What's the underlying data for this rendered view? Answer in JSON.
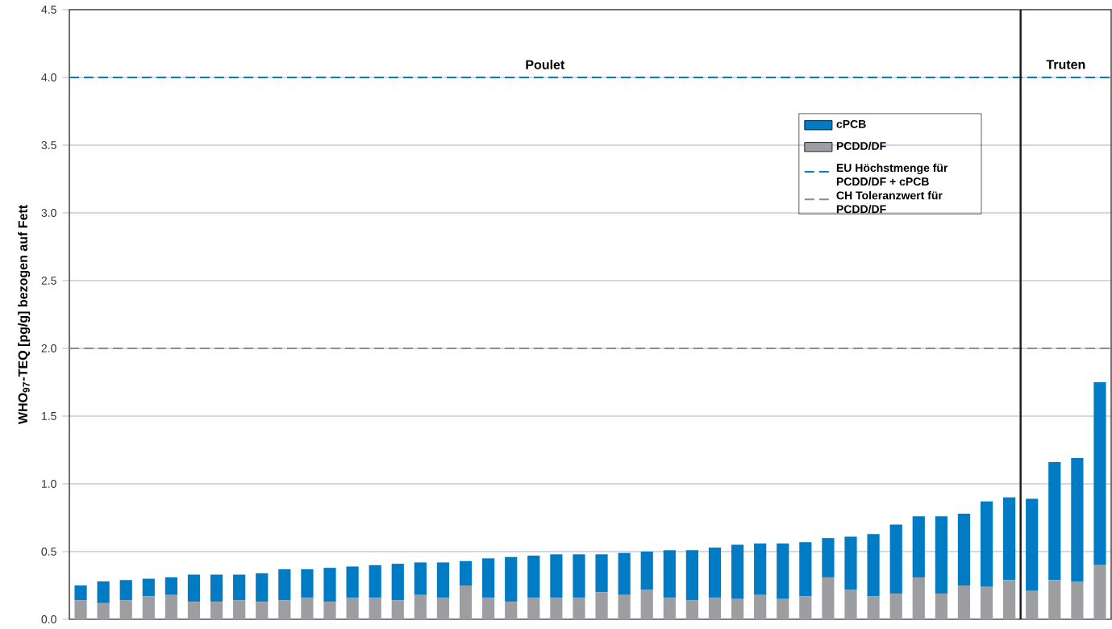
{
  "chart_data": {
    "type": "bar",
    "stacked": true,
    "ylabel": "WHO$_{97}$-TEQ [pg/g] bezogen auf Fett",
    "annotations": [
      "Poulet",
      "Truten"
    ],
    "categories": [
      null,
      null,
      null,
      null,
      null,
      null,
      null,
      null,
      null,
      null,
      null,
      null,
      null,
      null,
      null,
      null,
      null,
      null,
      null,
      null,
      null,
      null,
      null,
      null,
      null,
      null,
      null,
      null,
      null,
      null,
      null,
      null,
      null,
      null,
      null,
      null,
      null,
      null,
      null,
      null,
      null,
      null,
      null,
      null,
      null,
      null
    ],
    "series": [
      {
        "name": "PCDD/DF",
        "color": "#9d9ea2",
        "values": [
          0.14,
          0.12,
          0.14,
          0.17,
          0.18,
          0.13,
          0.13,
          0.14,
          0.13,
          0.14,
          0.16,
          0.13,
          0.16,
          0.16,
          0.14,
          0.18,
          0.16,
          0.25,
          0.16,
          0.13,
          0.16,
          0.16,
          0.16,
          0.2,
          0.18,
          0.22,
          0.16,
          0.14,
          0.16,
          0.15,
          0.18,
          0.15,
          0.17,
          0.31,
          0.22,
          0.17,
          0.19,
          0.31,
          0.19,
          0.25,
          0.24,
          0.29,
          0.21,
          0.29,
          0.28,
          0.4
        ]
      },
      {
        "name": "cPCB",
        "color": "#007bc4",
        "values": [
          0.11,
          0.16,
          0.15,
          0.13,
          0.13,
          0.2,
          0.2,
          0.19,
          0.21,
          0.23,
          0.21,
          0.25,
          0.23,
          0.24,
          0.27,
          0.24,
          0.26,
          0.18,
          0.29,
          0.33,
          0.31,
          0.32,
          0.32,
          0.28,
          0.31,
          0.28,
          0.35,
          0.37,
          0.37,
          0.4,
          0.38,
          0.41,
          0.4,
          0.29,
          0.39,
          0.46,
          0.51,
          0.45,
          0.57,
          0.53,
          0.63,
          0.61,
          0.68,
          0.87,
          0.91,
          1.35
        ]
      }
    ],
    "ref_lines": [
      {
        "axis": "y",
        "value": 4.0,
        "label": "EU Höchstmenge für PCDD/DF + cPCB",
        "color": "#0a7ac4",
        "line_style": "dashed"
      },
      {
        "axis": "y",
        "value": 2.0,
        "label": "CH Toleranzwert für PCDD/DF",
        "color": "#8c8c8c",
        "line_style": "dashed"
      }
    ],
    "ylim": [
      0,
      4.5
    ],
    "yticks": [
      {
        "value": 0,
        "label": "0.0"
      },
      {
        "value": 0.5,
        "label": "0.5"
      },
      {
        "value": 1,
        "label": "1.0"
      },
      {
        "value": 1.5,
        "label": "1.5"
      },
      {
        "value": 2,
        "label": "2.0"
      },
      {
        "value": 2.5,
        "label": "2.5"
      },
      {
        "value": 3,
        "label": "3.0"
      },
      {
        "value": 3.5,
        "label": "3.5"
      },
      {
        "value": 4,
        "label": "4.0"
      },
      {
        "value": 4.5,
        "label": "4.5"
      }
    ],
    "grid": "y",
    "legend": "top right"
  }
}
